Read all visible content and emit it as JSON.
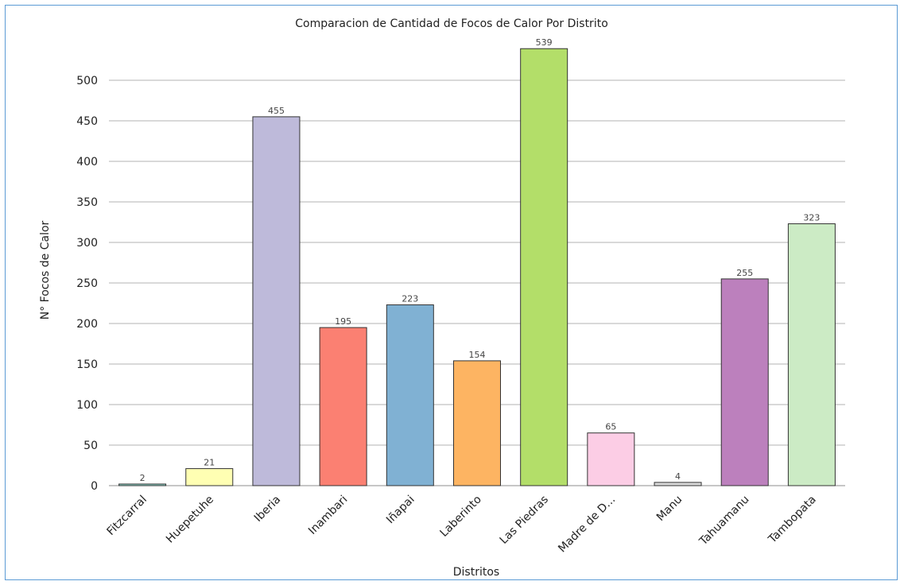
{
  "chart_data": {
    "type": "bar",
    "title": "Comparacion de Cantidad de Focos de Calor Por Distrito",
    "xlabel": "Distritos",
    "ylabel": "N° Focos de Calor",
    "categories": [
      "Fitzcarral",
      "Huepetuhe",
      "Iberia",
      "Inambari",
      "Iñapai",
      "Laberinto",
      "Las Piedras",
      "Madre de D...",
      "Manu",
      "Tahuamanu",
      "Tambopata"
    ],
    "values": [
      2,
      21,
      455,
      195,
      223,
      154,
      539,
      65,
      4,
      255,
      323
    ],
    "colors": [
      "#8dd3c7",
      "#ffffb3",
      "#bebada",
      "#fb8072",
      "#80b1d3",
      "#fdb462",
      "#b3de69",
      "#fccde5",
      "#d9d9d9",
      "#bc80bd",
      "#ccebc5"
    ],
    "ylim": [
      0,
      550
    ],
    "yticks": [
      0,
      50,
      100,
      150,
      200,
      250,
      300,
      350,
      400,
      450,
      500
    ],
    "grid": true,
    "data_labels": true
  }
}
